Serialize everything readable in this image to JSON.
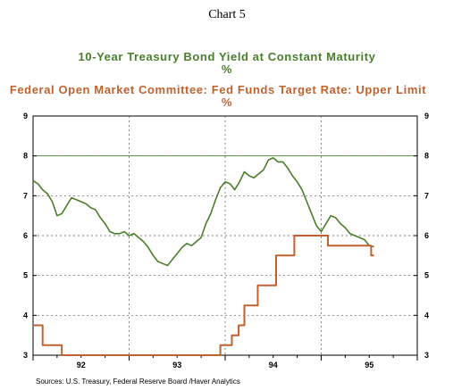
{
  "chart_data": {
    "type": "line",
    "title": "Chart 5",
    "source": "Sources:  U.S. Treasury, Federal Reserve Board /Haver Analytics",
    "x_tick_labels": [
      "92",
      "93",
      "94",
      "95"
    ],
    "x_range": [
      1992.0,
      1996.0
    ],
    "ylim": [
      3,
      9
    ],
    "y_ticks": [
      3,
      4,
      5,
      6,
      7,
      8,
      9
    ],
    "grid": true,
    "reference_line": 8,
    "series": [
      {
        "name": "10-Year Treasury Bond Yield at Constant Maturity",
        "unit": "%",
        "color": "#4a7f2a",
        "points": [
          [
            1992.0,
            7.38
          ],
          [
            1992.05,
            7.3
          ],
          [
            1992.1,
            7.15
          ],
          [
            1992.15,
            7.05
          ],
          [
            1992.2,
            6.85
          ],
          [
            1992.25,
            6.5
          ],
          [
            1992.3,
            6.55
          ],
          [
            1992.35,
            6.75
          ],
          [
            1992.4,
            6.95
          ],
          [
            1992.45,
            6.9
          ],
          [
            1992.5,
            6.85
          ],
          [
            1992.55,
            6.8
          ],
          [
            1992.6,
            6.7
          ],
          [
            1992.65,
            6.65
          ],
          [
            1992.7,
            6.45
          ],
          [
            1992.75,
            6.3
          ],
          [
            1992.8,
            6.1
          ],
          [
            1992.85,
            6.05
          ],
          [
            1992.9,
            6.05
          ],
          [
            1992.95,
            6.1
          ],
          [
            1993.0,
            6.0
          ],
          [
            1993.05,
            6.05
          ],
          [
            1993.1,
            5.95
          ],
          [
            1993.15,
            5.85
          ],
          [
            1993.2,
            5.7
          ],
          [
            1993.25,
            5.5
          ],
          [
            1993.3,
            5.35
          ],
          [
            1993.35,
            5.3
          ],
          [
            1993.4,
            5.25
          ],
          [
            1993.45,
            5.4
          ],
          [
            1993.5,
            5.55
          ],
          [
            1993.55,
            5.7
          ],
          [
            1993.6,
            5.8
          ],
          [
            1993.65,
            5.75
          ],
          [
            1993.7,
            5.85
          ],
          [
            1993.75,
            5.95
          ],
          [
            1993.8,
            6.3
          ],
          [
            1993.85,
            6.55
          ],
          [
            1993.9,
            6.9
          ],
          [
            1993.95,
            7.2
          ],
          [
            1994.0,
            7.35
          ],
          [
            1994.05,
            7.3
          ],
          [
            1994.1,
            7.15
          ],
          [
            1994.15,
            7.35
          ],
          [
            1994.2,
            7.6
          ],
          [
            1994.25,
            7.5
          ],
          [
            1994.3,
            7.45
          ],
          [
            1994.35,
            7.55
          ],
          [
            1994.4,
            7.65
          ],
          [
            1994.45,
            7.9
          ],
          [
            1994.5,
            7.95
          ],
          [
            1994.55,
            7.85
          ],
          [
            1994.6,
            7.85
          ],
          [
            1994.65,
            7.7
          ],
          [
            1994.7,
            7.5
          ],
          [
            1994.75,
            7.35
          ],
          [
            1994.8,
            7.15
          ],
          [
            1994.85,
            6.85
          ],
          [
            1994.9,
            6.55
          ],
          [
            1994.95,
            6.25
          ],
          [
            1995.0,
            6.1
          ],
          [
            1995.05,
            6.3
          ],
          [
            1995.1,
            6.5
          ],
          [
            1995.15,
            6.45
          ],
          [
            1995.2,
            6.3
          ],
          [
            1995.25,
            6.2
          ],
          [
            1995.3,
            6.05
          ],
          [
            1995.35,
            6.0
          ],
          [
            1995.4,
            5.95
          ],
          [
            1995.45,
            5.9
          ],
          [
            1995.5,
            5.75
          ],
          [
            1995.55,
            5.72
          ]
        ]
      },
      {
        "name": "Federal Open Market Committee: Fed Funds Target Rate: Upper Limit",
        "unit": "%",
        "color": "#c0622e",
        "points": [
          [
            1992.0,
            3.75
          ],
          [
            1992.1,
            3.75
          ],
          [
            1992.1,
            3.25
          ],
          [
            1992.3,
            3.25
          ],
          [
            1992.3,
            3.0
          ],
          [
            1993.95,
            3.0
          ],
          [
            1993.95,
            3.25
          ],
          [
            1994.07,
            3.25
          ],
          [
            1994.07,
            3.5
          ],
          [
            1994.14,
            3.5
          ],
          [
            1994.14,
            3.75
          ],
          [
            1994.2,
            3.75
          ],
          [
            1994.2,
            4.25
          ],
          [
            1994.34,
            4.25
          ],
          [
            1994.34,
            4.75
          ],
          [
            1994.53,
            4.75
          ],
          [
            1994.53,
            5.5
          ],
          [
            1994.72,
            5.5
          ],
          [
            1994.72,
            6.0
          ],
          [
            1995.07,
            6.0
          ],
          [
            1995.07,
            5.75
          ],
          [
            1995.52,
            5.75
          ],
          [
            1995.52,
            5.5
          ],
          [
            1995.55,
            5.5
          ]
        ]
      }
    ]
  }
}
